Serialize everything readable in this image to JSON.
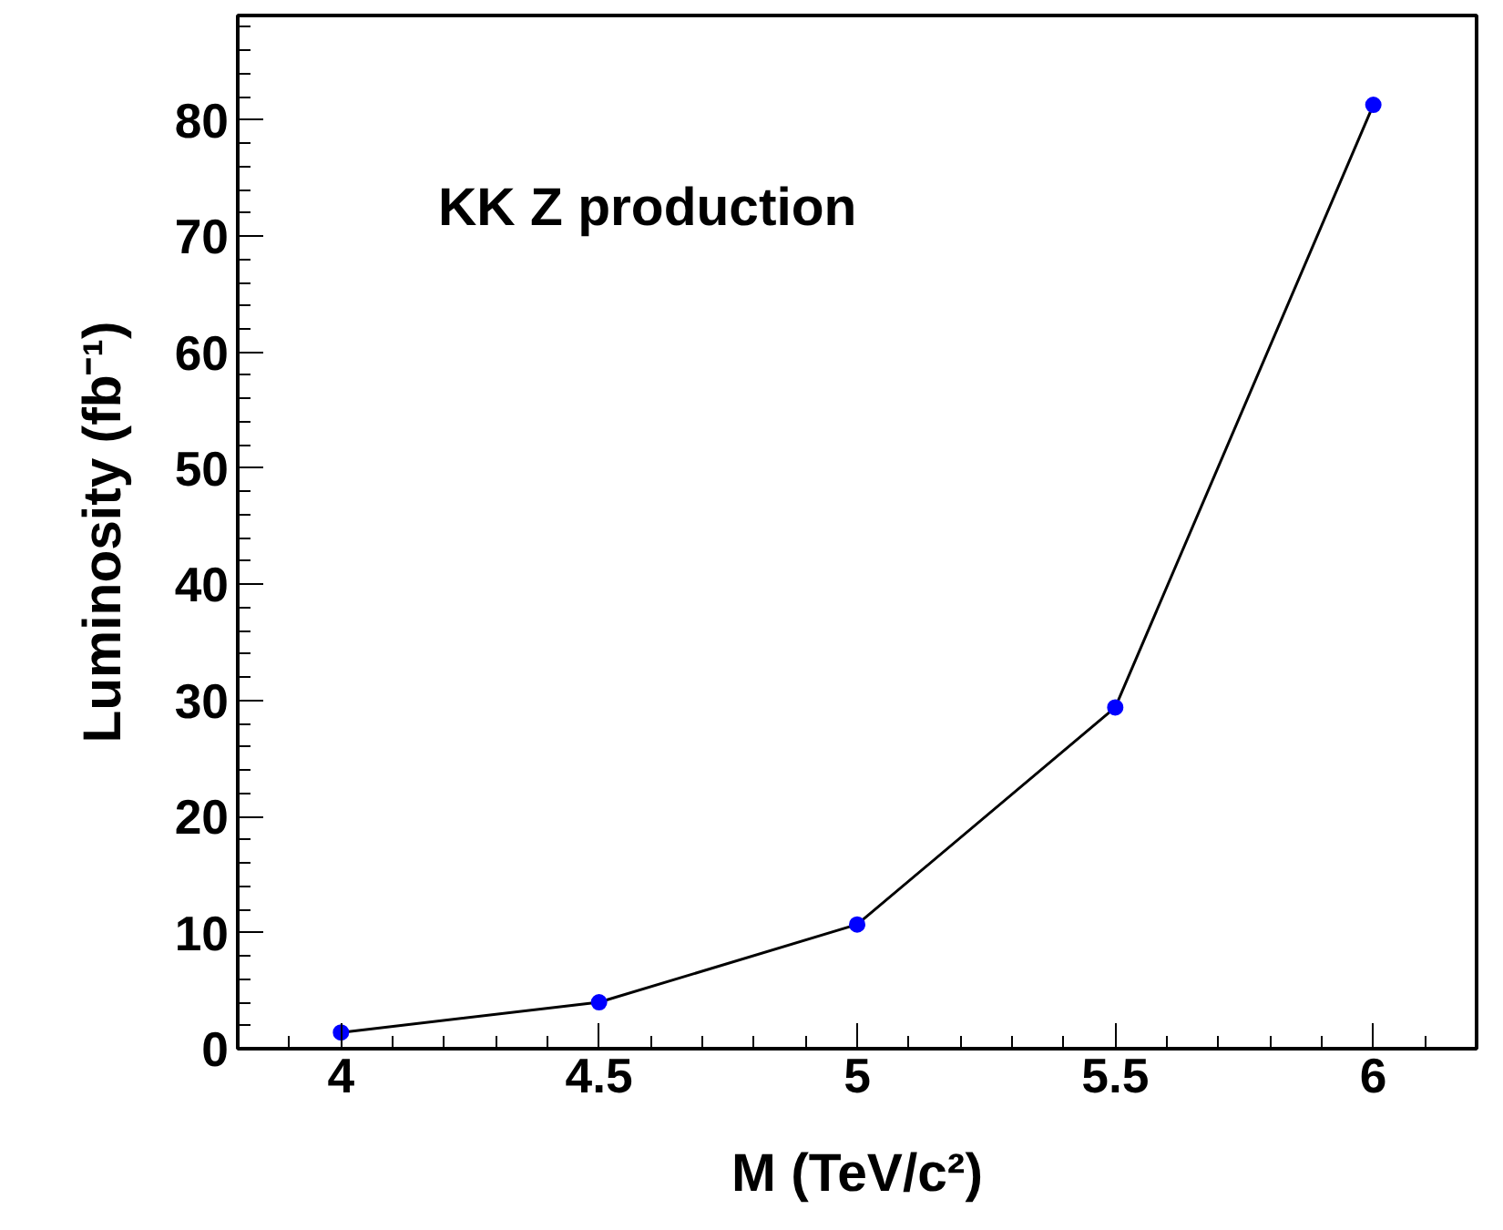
{
  "chart_data": {
    "type": "line",
    "xlabel": "M (TeV/c²)",
    "ylabel": "Luminosity (fb⁻¹)",
    "annotations": [
      "KK Z production"
    ],
    "x": [
      4,
      4.5,
      5,
      5.5,
      6
    ],
    "series": [
      {
        "color": "#0000ff",
        "values": [
          1.4,
          4,
          10.7,
          29.4,
          81.3
        ]
      }
    ],
    "marker": "circle",
    "line_style": "solid",
    "grid": false,
    "xlim": [
      3.8,
      6.2
    ],
    "ylim": [
      0,
      89
    ],
    "xticks": [
      4,
      4.5,
      5,
      5.5,
      6
    ],
    "yticks": [
      0,
      10,
      20,
      30,
      40,
      50,
      60,
      70,
      80
    ]
  }
}
